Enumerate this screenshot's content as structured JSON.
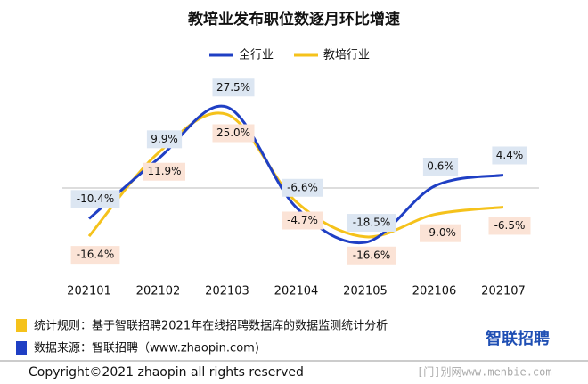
{
  "chart_data": {
    "type": "line",
    "title": "教培业发布职位数逐月环比增速",
    "categories": [
      "202101",
      "202102",
      "202103",
      "202104",
      "202105",
      "202106",
      "202107"
    ],
    "series": [
      {
        "name": "全行业",
        "color": "#1f3fc4",
        "label_bg": "#dce6f2",
        "values": [
          -10.4,
          9.9,
          27.5,
          -6.6,
          -18.5,
          0.6,
          4.4
        ],
        "value_labels": [
          "-10.4%",
          "9.9%",
          "27.5%",
          "-6.6%",
          "-18.5%",
          "0.6%",
          "4.4%"
        ]
      },
      {
        "name": "教培行业",
        "color": "#f5c21b",
        "label_bg": "#fbe3d6",
        "values": [
          -16.4,
          11.9,
          25.0,
          -4.7,
          -16.6,
          -9.0,
          -6.5
        ],
        "value_labels": [
          "-16.4%",
          "11.9%",
          "25.0%",
          "-4.7%",
          "-16.6%",
          "-9.0%",
          "-6.5%"
        ]
      }
    ]
  },
  "footer": {
    "rule": "统计规则：基于智联招聘2021年在线招聘数据库的数据监测统计分析",
    "source": "数据来源：智联招聘（www.zhaopin.com)",
    "logo": "智联招聘",
    "copyright": "Copyright©2021 zhaopin all rights reserved",
    "watermark": "[门]别网www.menbie.com"
  }
}
